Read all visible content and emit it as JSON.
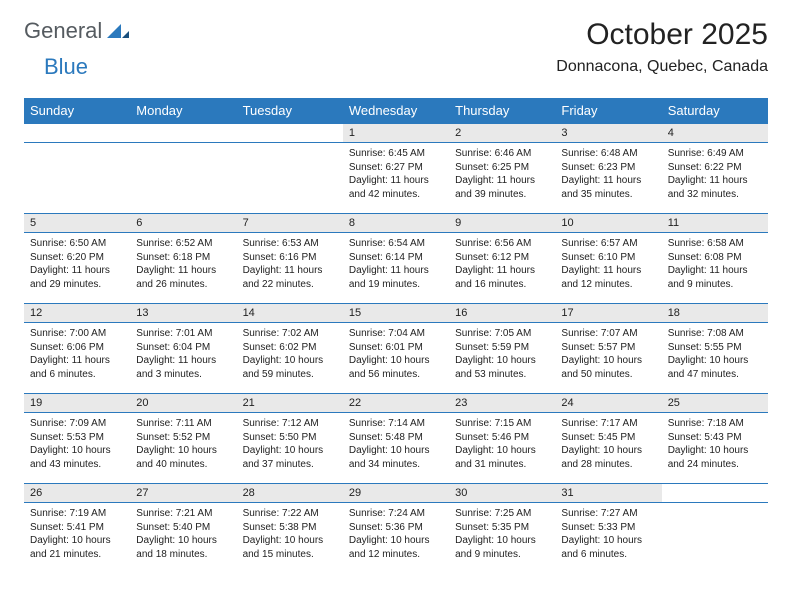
{
  "brand": {
    "part1": "General",
    "part2": "Blue"
  },
  "title": "October 2025",
  "location": "Donnacona, Quebec, Canada",
  "colors": {
    "header_bg": "#2b79bd",
    "header_text": "#ffffff",
    "daynum_bg": "#e9e9e9",
    "border": "#2b79bd",
    "logo_gray": "#555b60",
    "logo_blue": "#2b79bd"
  },
  "weekdays": [
    "Sunday",
    "Monday",
    "Tuesday",
    "Wednesday",
    "Thursday",
    "Friday",
    "Saturday"
  ],
  "weeks": [
    [
      null,
      null,
      null,
      {
        "n": "1",
        "sr": "Sunrise: 6:45 AM",
        "ss": "Sunset: 6:27 PM",
        "d1": "Daylight: 11 hours",
        "d2": "and 42 minutes."
      },
      {
        "n": "2",
        "sr": "Sunrise: 6:46 AM",
        "ss": "Sunset: 6:25 PM",
        "d1": "Daylight: 11 hours",
        "d2": "and 39 minutes."
      },
      {
        "n": "3",
        "sr": "Sunrise: 6:48 AM",
        "ss": "Sunset: 6:23 PM",
        "d1": "Daylight: 11 hours",
        "d2": "and 35 minutes."
      },
      {
        "n": "4",
        "sr": "Sunrise: 6:49 AM",
        "ss": "Sunset: 6:22 PM",
        "d1": "Daylight: 11 hours",
        "d2": "and 32 minutes."
      }
    ],
    [
      {
        "n": "5",
        "sr": "Sunrise: 6:50 AM",
        "ss": "Sunset: 6:20 PM",
        "d1": "Daylight: 11 hours",
        "d2": "and 29 minutes."
      },
      {
        "n": "6",
        "sr": "Sunrise: 6:52 AM",
        "ss": "Sunset: 6:18 PM",
        "d1": "Daylight: 11 hours",
        "d2": "and 26 minutes."
      },
      {
        "n": "7",
        "sr": "Sunrise: 6:53 AM",
        "ss": "Sunset: 6:16 PM",
        "d1": "Daylight: 11 hours",
        "d2": "and 22 minutes."
      },
      {
        "n": "8",
        "sr": "Sunrise: 6:54 AM",
        "ss": "Sunset: 6:14 PM",
        "d1": "Daylight: 11 hours",
        "d2": "and 19 minutes."
      },
      {
        "n": "9",
        "sr": "Sunrise: 6:56 AM",
        "ss": "Sunset: 6:12 PM",
        "d1": "Daylight: 11 hours",
        "d2": "and 16 minutes."
      },
      {
        "n": "10",
        "sr": "Sunrise: 6:57 AM",
        "ss": "Sunset: 6:10 PM",
        "d1": "Daylight: 11 hours",
        "d2": "and 12 minutes."
      },
      {
        "n": "11",
        "sr": "Sunrise: 6:58 AM",
        "ss": "Sunset: 6:08 PM",
        "d1": "Daylight: 11 hours",
        "d2": "and 9 minutes."
      }
    ],
    [
      {
        "n": "12",
        "sr": "Sunrise: 7:00 AM",
        "ss": "Sunset: 6:06 PM",
        "d1": "Daylight: 11 hours",
        "d2": "and 6 minutes."
      },
      {
        "n": "13",
        "sr": "Sunrise: 7:01 AM",
        "ss": "Sunset: 6:04 PM",
        "d1": "Daylight: 11 hours",
        "d2": "and 3 minutes."
      },
      {
        "n": "14",
        "sr": "Sunrise: 7:02 AM",
        "ss": "Sunset: 6:02 PM",
        "d1": "Daylight: 10 hours",
        "d2": "and 59 minutes."
      },
      {
        "n": "15",
        "sr": "Sunrise: 7:04 AM",
        "ss": "Sunset: 6:01 PM",
        "d1": "Daylight: 10 hours",
        "d2": "and 56 minutes."
      },
      {
        "n": "16",
        "sr": "Sunrise: 7:05 AM",
        "ss": "Sunset: 5:59 PM",
        "d1": "Daylight: 10 hours",
        "d2": "and 53 minutes."
      },
      {
        "n": "17",
        "sr": "Sunrise: 7:07 AM",
        "ss": "Sunset: 5:57 PM",
        "d1": "Daylight: 10 hours",
        "d2": "and 50 minutes."
      },
      {
        "n": "18",
        "sr": "Sunrise: 7:08 AM",
        "ss": "Sunset: 5:55 PM",
        "d1": "Daylight: 10 hours",
        "d2": "and 47 minutes."
      }
    ],
    [
      {
        "n": "19",
        "sr": "Sunrise: 7:09 AM",
        "ss": "Sunset: 5:53 PM",
        "d1": "Daylight: 10 hours",
        "d2": "and 43 minutes."
      },
      {
        "n": "20",
        "sr": "Sunrise: 7:11 AM",
        "ss": "Sunset: 5:52 PM",
        "d1": "Daylight: 10 hours",
        "d2": "and 40 minutes."
      },
      {
        "n": "21",
        "sr": "Sunrise: 7:12 AM",
        "ss": "Sunset: 5:50 PM",
        "d1": "Daylight: 10 hours",
        "d2": "and 37 minutes."
      },
      {
        "n": "22",
        "sr": "Sunrise: 7:14 AM",
        "ss": "Sunset: 5:48 PM",
        "d1": "Daylight: 10 hours",
        "d2": "and 34 minutes."
      },
      {
        "n": "23",
        "sr": "Sunrise: 7:15 AM",
        "ss": "Sunset: 5:46 PM",
        "d1": "Daylight: 10 hours",
        "d2": "and 31 minutes."
      },
      {
        "n": "24",
        "sr": "Sunrise: 7:17 AM",
        "ss": "Sunset: 5:45 PM",
        "d1": "Daylight: 10 hours",
        "d2": "and 28 minutes."
      },
      {
        "n": "25",
        "sr": "Sunrise: 7:18 AM",
        "ss": "Sunset: 5:43 PM",
        "d1": "Daylight: 10 hours",
        "d2": "and 24 minutes."
      }
    ],
    [
      {
        "n": "26",
        "sr": "Sunrise: 7:19 AM",
        "ss": "Sunset: 5:41 PM",
        "d1": "Daylight: 10 hours",
        "d2": "and 21 minutes."
      },
      {
        "n": "27",
        "sr": "Sunrise: 7:21 AM",
        "ss": "Sunset: 5:40 PM",
        "d1": "Daylight: 10 hours",
        "d2": "and 18 minutes."
      },
      {
        "n": "28",
        "sr": "Sunrise: 7:22 AM",
        "ss": "Sunset: 5:38 PM",
        "d1": "Daylight: 10 hours",
        "d2": "and 15 minutes."
      },
      {
        "n": "29",
        "sr": "Sunrise: 7:24 AM",
        "ss": "Sunset: 5:36 PM",
        "d1": "Daylight: 10 hours",
        "d2": "and 12 minutes."
      },
      {
        "n": "30",
        "sr": "Sunrise: 7:25 AM",
        "ss": "Sunset: 5:35 PM",
        "d1": "Daylight: 10 hours",
        "d2": "and 9 minutes."
      },
      {
        "n": "31",
        "sr": "Sunrise: 7:27 AM",
        "ss": "Sunset: 5:33 PM",
        "d1": "Daylight: 10 hours",
        "d2": "and 6 minutes."
      },
      null
    ]
  ]
}
